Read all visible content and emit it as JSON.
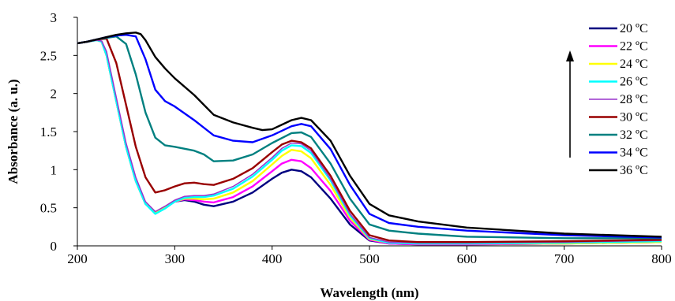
{
  "chart_data": {
    "type": "line",
    "title": "",
    "xlabel": "Wavelength (nm)",
    "ylabel": "Absorbance (a. u.)",
    "xlim": [
      200,
      800
    ],
    "ylim": [
      0,
      3
    ],
    "xticks": [
      "200",
      "300",
      "400",
      "500",
      "600",
      "700",
      "800"
    ],
    "yticks": [
      "0",
      "0.5",
      "1",
      "1.5",
      "2",
      "2.5",
      "3"
    ],
    "grid": false,
    "legend_position": "right",
    "annotation": "upward arrow indicating increasing temperature",
    "series": [
      {
        "name": "20 ºC",
        "color": "#000080",
        "x": [
          200,
          210,
          220,
          225,
          230,
          240,
          250,
          260,
          270,
          280,
          290,
          300,
          310,
          320,
          330,
          340,
          360,
          380,
          400,
          410,
          420,
          430,
          440,
          460,
          480,
          500,
          520,
          550,
          600,
          700,
          800
        ],
        "y": [
          2.66,
          2.68,
          2.7,
          2.68,
          2.5,
          1.9,
          1.3,
          0.85,
          0.55,
          0.43,
          0.5,
          0.58,
          0.6,
          0.58,
          0.54,
          0.52,
          0.58,
          0.7,
          0.88,
          0.96,
          1.0,
          0.98,
          0.9,
          0.62,
          0.28,
          0.07,
          0.03,
          0.02,
          0.02,
          0.03,
          0.05
        ]
      },
      {
        "name": "22 ºC",
        "color": "#FF00FF",
        "x": [
          200,
          210,
          220,
          225,
          230,
          240,
          250,
          260,
          270,
          280,
          290,
          300,
          310,
          320,
          330,
          340,
          360,
          380,
          400,
          410,
          420,
          430,
          440,
          460,
          480,
          500,
          520,
          550,
          600,
          700,
          800
        ],
        "y": [
          2.66,
          2.68,
          2.7,
          2.68,
          2.5,
          1.9,
          1.3,
          0.85,
          0.55,
          0.43,
          0.5,
          0.58,
          0.61,
          0.6,
          0.58,
          0.57,
          0.64,
          0.78,
          0.98,
          1.08,
          1.13,
          1.11,
          1.02,
          0.72,
          0.33,
          0.08,
          0.03,
          0.02,
          0.02,
          0.03,
          0.05
        ]
      },
      {
        "name": "24 ºC",
        "color": "#FFFF00",
        "x": [
          200,
          210,
          220,
          225,
          230,
          240,
          250,
          260,
          270,
          280,
          290,
          300,
          310,
          320,
          330,
          340,
          360,
          380,
          400,
          410,
          420,
          430,
          440,
          460,
          480,
          500,
          520,
          550,
          600,
          700,
          800
        ],
        "y": [
          2.66,
          2.68,
          2.7,
          2.68,
          2.5,
          1.9,
          1.3,
          0.85,
          0.55,
          0.43,
          0.5,
          0.58,
          0.62,
          0.62,
          0.61,
          0.62,
          0.7,
          0.85,
          1.07,
          1.18,
          1.26,
          1.24,
          1.15,
          0.8,
          0.37,
          0.09,
          0.04,
          0.03,
          0.03,
          0.03,
          0.05
        ]
      },
      {
        "name": "26 ºC",
        "color": "#00FFFF",
        "x": [
          200,
          210,
          220,
          225,
          230,
          240,
          250,
          260,
          270,
          280,
          290,
          300,
          310,
          320,
          330,
          340,
          360,
          380,
          400,
          410,
          420,
          430,
          440,
          460,
          480,
          500,
          520,
          550,
          600,
          700,
          800
        ],
        "y": [
          2.66,
          2.68,
          2.7,
          2.68,
          2.5,
          1.9,
          1.3,
          0.85,
          0.55,
          0.42,
          0.49,
          0.58,
          0.63,
          0.64,
          0.64,
          0.66,
          0.75,
          0.91,
          1.13,
          1.25,
          1.32,
          1.31,
          1.22,
          0.86,
          0.4,
          0.1,
          0.04,
          0.03,
          0.03,
          0.04,
          0.06
        ]
      },
      {
        "name": "28 ºC",
        "color": "#9933CC",
        "x": [
          200,
          210,
          220,
          225,
          230,
          240,
          250,
          260,
          270,
          280,
          290,
          300,
          310,
          320,
          330,
          340,
          360,
          380,
          400,
          410,
          420,
          430,
          440,
          460,
          480,
          500,
          520,
          550,
          600,
          700,
          800
        ],
        "y": [
          2.66,
          2.68,
          2.7,
          2.69,
          2.55,
          1.95,
          1.35,
          0.9,
          0.58,
          0.45,
          0.52,
          0.6,
          0.65,
          0.66,
          0.66,
          0.68,
          0.78,
          0.94,
          1.16,
          1.28,
          1.35,
          1.34,
          1.25,
          0.88,
          0.42,
          0.11,
          0.05,
          0.04,
          0.04,
          0.05,
          0.07
        ]
      },
      {
        "name": "30 ºC",
        "color": "#990000",
        "x": [
          200,
          210,
          220,
          230,
          240,
          250,
          260,
          270,
          280,
          290,
          300,
          310,
          320,
          330,
          340,
          360,
          380,
          400,
          410,
          420,
          430,
          440,
          460,
          480,
          500,
          520,
          550,
          600,
          700,
          800
        ],
        "y": [
          2.66,
          2.68,
          2.71,
          2.72,
          2.4,
          1.85,
          1.3,
          0.9,
          0.7,
          0.73,
          0.78,
          0.82,
          0.83,
          0.81,
          0.8,
          0.88,
          1.02,
          1.23,
          1.33,
          1.38,
          1.36,
          1.28,
          0.92,
          0.46,
          0.14,
          0.07,
          0.05,
          0.05,
          0.06,
          0.08
        ]
      },
      {
        "name": "32 ºC",
        "color": "#008080",
        "x": [
          200,
          210,
          220,
          230,
          240,
          250,
          260,
          270,
          280,
          290,
          300,
          320,
          330,
          340,
          360,
          380,
          400,
          420,
          430,
          440,
          460,
          480,
          500,
          520,
          550,
          600,
          700,
          800
        ],
        "y": [
          2.66,
          2.68,
          2.71,
          2.73,
          2.75,
          2.65,
          2.25,
          1.75,
          1.42,
          1.32,
          1.3,
          1.25,
          1.2,
          1.11,
          1.12,
          1.2,
          1.35,
          1.48,
          1.49,
          1.43,
          1.08,
          0.62,
          0.28,
          0.2,
          0.16,
          0.12,
          0.1,
          0.1
        ]
      },
      {
        "name": "34 ºC",
        "color": "#0000FF",
        "x": [
          200,
          210,
          220,
          230,
          240,
          250,
          260,
          270,
          280,
          290,
          300,
          320,
          340,
          360,
          380,
          400,
          420,
          430,
          440,
          460,
          480,
          500,
          520,
          550,
          600,
          700,
          800
        ],
        "y": [
          2.66,
          2.68,
          2.71,
          2.74,
          2.76,
          2.77,
          2.75,
          2.45,
          2.05,
          1.9,
          1.83,
          1.65,
          1.45,
          1.38,
          1.36,
          1.45,
          1.57,
          1.6,
          1.57,
          1.27,
          0.8,
          0.42,
          0.3,
          0.25,
          0.2,
          0.14,
          0.11
        ]
      },
      {
        "name": "36 ºC",
        "color": "#000000",
        "x": [
          200,
          210,
          220,
          230,
          240,
          250,
          260,
          265,
          270,
          280,
          290,
          300,
          320,
          340,
          360,
          380,
          390,
          400,
          420,
          430,
          440,
          460,
          480,
          500,
          520,
          550,
          600,
          700,
          800
        ],
        "y": [
          2.66,
          2.68,
          2.71,
          2.74,
          2.77,
          2.79,
          2.8,
          2.78,
          2.7,
          2.48,
          2.33,
          2.2,
          1.98,
          1.72,
          1.62,
          1.55,
          1.52,
          1.53,
          1.65,
          1.68,
          1.65,
          1.38,
          0.92,
          0.55,
          0.4,
          0.32,
          0.24,
          0.16,
          0.12
        ]
      }
    ]
  }
}
